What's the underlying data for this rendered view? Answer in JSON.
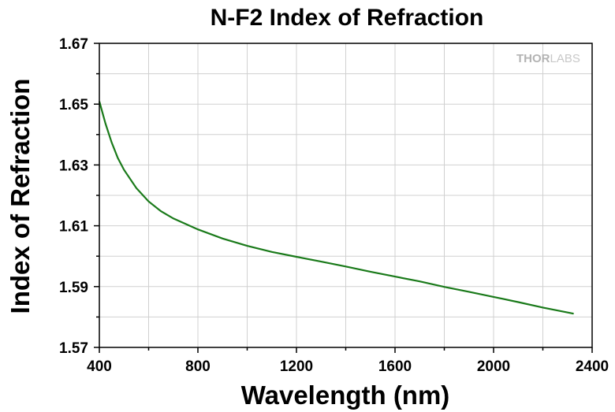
{
  "chart_data": {
    "type": "line",
    "title": "N-F2 Index of Refraction",
    "xlabel": "Wavelength (nm)",
    "ylabel": "Index of Refraction",
    "xlim": [
      400,
      2400
    ],
    "ylim": [
      1.57,
      1.67
    ],
    "xticks": [
      "400",
      "800",
      "1200",
      "1600",
      "2000",
      "2400"
    ],
    "yticks": [
      "1.57",
      "1.59",
      "1.61",
      "1.63",
      "1.65",
      "1.67"
    ],
    "grid": true,
    "series": [
      {
        "color": "#1a7a1a",
        "x": [
          400,
          425,
          450,
          475,
          500,
          550,
          600,
          650,
          700,
          800,
          900,
          1000,
          1100,
          1200,
          1300,
          1400,
          1500,
          1600,
          1700,
          1800,
          1900,
          2000,
          2100,
          2200,
          2325
        ],
        "y": [
          1.6509,
          1.6436,
          1.6374,
          1.6323,
          1.6284,
          1.6224,
          1.618,
          1.6148,
          1.6124,
          1.6088,
          1.6058,
          1.6034,
          1.6014,
          1.5998,
          1.5982,
          1.5966,
          1.5949,
          1.5933,
          1.5917,
          1.5899,
          1.5883,
          1.5866,
          1.5849,
          1.5831,
          1.5811
        ]
      }
    ]
  },
  "logo": {
    "text_bold": "THOR",
    "text_light": "LABS"
  }
}
